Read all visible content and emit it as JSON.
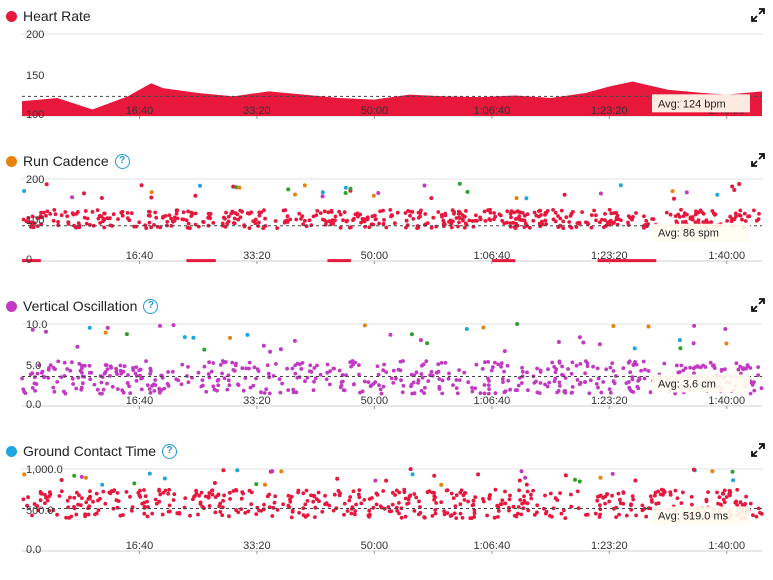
{
  "panels": [
    {
      "title": "Heart Rate",
      "color": "#e8173c",
      "has_help": false,
      "expand_icon": "expand-arrows-icon",
      "avg_label": "Avg: 124 bpm"
    },
    {
      "title": "Run Cadence",
      "color": "#e8820c",
      "has_help": true,
      "expand_icon": "expand-arrows-icon",
      "avg_label": "Avg: 86 spm"
    },
    {
      "title": "Vertical Oscillation",
      "color": "#c23ac3",
      "has_help": true,
      "expand_icon": "expand-arrows-icon",
      "avg_label": "Avg: 3.6 cm"
    },
    {
      "title": "Ground Contact Time",
      "color": "#1ea6df",
      "has_help": true,
      "expand_icon": "expand-arrows-icon",
      "avg_label": "Avg: 519.0 ms"
    }
  ],
  "help_glyph": "?",
  "chart_data": [
    {
      "type": "area",
      "title": "Heart Rate",
      "color": "#e8173c",
      "y_ticks": [
        "200",
        "150",
        "100"
      ],
      "ylim": [
        100,
        200
      ],
      "average": 124,
      "x_ticks": [
        "16:40",
        "33:20",
        "50:00",
        "1:06:40",
        "1:23:20",
        "1:40:00"
      ],
      "x_seconds": [
        0,
        300,
        600,
        900,
        1000,
        1100,
        1200,
        1500,
        1800,
        2100,
        2400,
        2700,
        3000,
        3300,
        3600,
        3900,
        4200,
        4500,
        4800,
        5000,
        5200,
        5500,
        5800,
        6000,
        6300
      ],
      "values": [
        118,
        122,
        108,
        124,
        132,
        140,
        134,
        128,
        124,
        130,
        126,
        122,
        120,
        126,
        124,
        123,
        125,
        122,
        128,
        136,
        142,
        132,
        128,
        126,
        130
      ]
    },
    {
      "type": "scatter",
      "title": "Run Cadence",
      "color": "#e8173c",
      "y_ticks": [
        "200",
        "100",
        "0"
      ],
      "ylim": [
        0,
        200
      ],
      "average": 86,
      "x_ticks": [
        "16:40",
        "33:20",
        "50:00",
        "1:06:40",
        "1:23:20",
        "1:40:00"
      ],
      "series_summary": {
        "main_band": [
          80,
          125
        ],
        "outliers_high": [
          150,
          190
        ],
        "zero_segments": true
      }
    },
    {
      "type": "scatter",
      "title": "Vertical Oscillation",
      "color": "#c23ac3",
      "y_ticks": [
        "10.0",
        "5.0",
        "0.0"
      ],
      "ylim": [
        0,
        10
      ],
      "average": 3.6,
      "x_ticks": [
        "16:40",
        "33:20",
        "50:00",
        "1:06:40",
        "1:23:20",
        "1:40:00"
      ],
      "series_summary": {
        "main_band": [
          1.5,
          5.5
        ],
        "outliers_high": [
          6.5,
          10
        ]
      }
    },
    {
      "type": "scatter",
      "title": "Ground Contact Time",
      "color": "#e8173c",
      "y_ticks": [
        "1,000.0",
        "500.0",
        "0.0"
      ],
      "ylim": [
        0,
        1000
      ],
      "average": 519.0,
      "x_ticks": [
        "16:40",
        "33:20",
        "50:00",
        "1:06:40",
        "1:23:20",
        "1:40:00"
      ],
      "series_summary": {
        "main_band": [
          400,
          750
        ],
        "outliers_high": [
          800,
          1000
        ]
      }
    }
  ],
  "outlier_colors": [
    "#2aa32a",
    "#1ea6df",
    "#e8820c",
    "#c23ac3"
  ]
}
